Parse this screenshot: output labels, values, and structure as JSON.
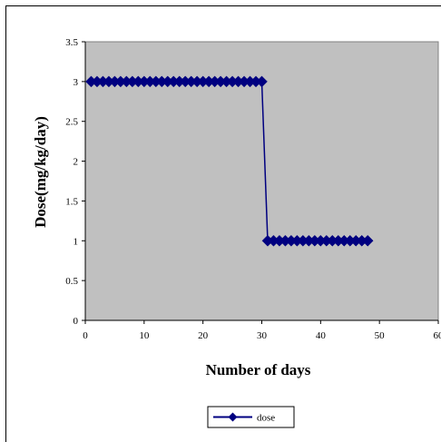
{
  "chart_data": {
    "type": "line",
    "title": "",
    "xlabel": "Number of days",
    "ylabel": "Dose(mg/kg/day)",
    "xlim": [
      0,
      60
    ],
    "ylim": [
      0,
      3.5
    ],
    "x_ticks": [
      "0",
      "10",
      "20",
      "30",
      "40",
      "50",
      "60"
    ],
    "y_ticks": [
      "0",
      "0.5",
      "1",
      "1.5",
      "2",
      "2.5",
      "3",
      "3.5"
    ],
    "grid": false,
    "legend_position": "bottom",
    "plot_background": "#c0c0c0",
    "series": [
      {
        "name": "dose",
        "color": "#000080",
        "marker": "diamond",
        "x": [
          1,
          2,
          3,
          4,
          5,
          6,
          7,
          8,
          9,
          10,
          11,
          12,
          13,
          14,
          15,
          16,
          17,
          18,
          19,
          20,
          21,
          22,
          23,
          24,
          25,
          26,
          27,
          28,
          29,
          30,
          31,
          32,
          33,
          34,
          35,
          36,
          37,
          38,
          39,
          40,
          41,
          42,
          43,
          44,
          45,
          46,
          47,
          48
        ],
        "y": [
          3,
          3,
          3,
          3,
          3,
          3,
          3,
          3,
          3,
          3,
          3,
          3,
          3,
          3,
          3,
          3,
          3,
          3,
          3,
          3,
          3,
          3,
          3,
          3,
          3,
          3,
          3,
          3,
          3,
          3,
          1,
          1,
          1,
          1,
          1,
          1,
          1,
          1,
          1,
          1,
          1,
          1,
          1,
          1,
          1,
          1,
          1,
          1
        ]
      }
    ]
  }
}
